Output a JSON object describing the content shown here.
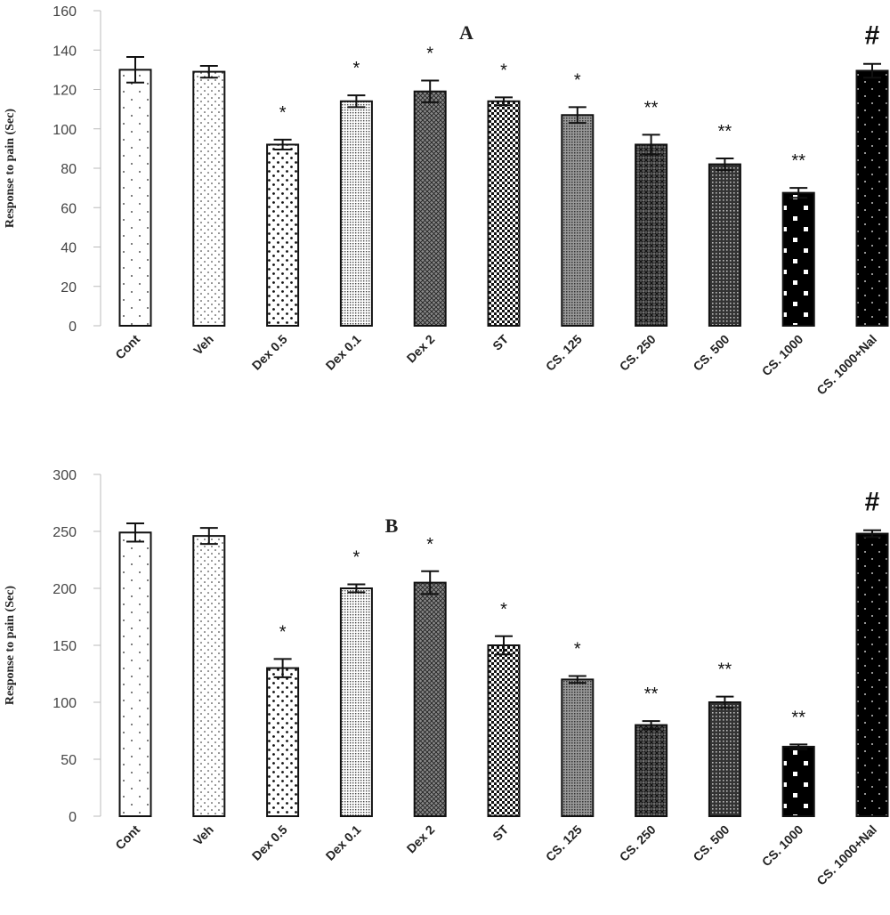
{
  "chart_data": [
    {
      "type": "bar",
      "panel_label": "A",
      "ylabel": "Response to pain (Sec)",
      "xlabel": "",
      "ylim": [
        0,
        160
      ],
      "yticks": [
        0,
        20,
        40,
        60,
        80,
        100,
        120,
        140,
        160
      ],
      "grid": false,
      "categories": [
        "Cont",
        "Veh",
        "Dex 0.5",
        "Dex 0.1",
        "Dex 2",
        "ST",
        "CS. 125",
        "CS. 250",
        "CS. 500",
        "CS. 1000",
        "CS. 1000+Nal"
      ],
      "values": [
        130,
        129,
        92,
        114,
        119,
        114,
        107,
        92,
        82,
        67.5,
        129.5
      ],
      "errors": [
        6.5,
        3,
        2.5,
        3,
        5.5,
        2,
        4,
        5,
        3,
        2.5,
        3.5
      ],
      "annotations": [
        "",
        "",
        "*",
        "*",
        "*",
        "*",
        "*",
        "**",
        "**",
        "**",
        "#"
      ]
    },
    {
      "type": "bar",
      "panel_label": "B",
      "ylabel": "Response to pain (Sec)",
      "xlabel": "",
      "ylim": [
        0,
        300
      ],
      "yticks": [
        0,
        50,
        100,
        150,
        200,
        250,
        300
      ],
      "grid": false,
      "categories": [
        "Cont",
        "Veh",
        "Dex 0.5",
        "Dex 0.1",
        "Dex 2",
        "ST",
        "CS. 125",
        "CS. 250",
        "CS. 500",
        "CS. 1000",
        "CS. 1000+Nal"
      ],
      "values": [
        249,
        246,
        130,
        200,
        205,
        150,
        120,
        80,
        100,
        61,
        248
      ],
      "errors": [
        8,
        7,
        8,
        3.5,
        10,
        8,
        3,
        3.5,
        5,
        2,
        3
      ],
      "annotations": [
        "",
        "",
        "*",
        "*",
        "*",
        "*",
        "*",
        "**",
        "**",
        "**",
        "#"
      ]
    }
  ]
}
